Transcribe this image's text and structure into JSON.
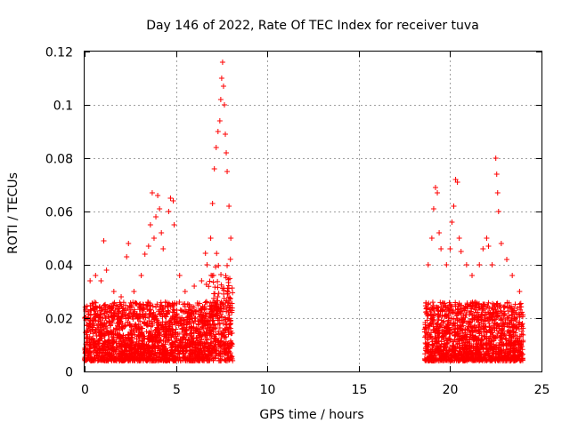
{
  "chart_data": {
    "type": "scatter",
    "title": "Day 146 of 2022, Rate Of TEC Index for receiver tuva",
    "xlabel": "GPS time / hours",
    "ylabel": "ROTI / TECUs",
    "xlim": [
      0,
      25
    ],
    "ylim": [
      0,
      0.12
    ],
    "xticks": [
      "0",
      "5",
      "10",
      "15",
      "20",
      "25"
    ],
    "yticks": [
      "0",
      "0.02",
      "0.04",
      "0.06",
      "0.08",
      "0.1",
      "0.12"
    ],
    "grid": true,
    "marker": "plus",
    "color": "#ff0000",
    "series": [
      {
        "segments": [
          [
            0.0,
            8.1
          ],
          [
            18.6,
            24.0
          ]
        ],
        "points": [
          [
            0.3,
            0.034
          ],
          [
            0.6,
            0.036
          ],
          [
            0.9,
            0.034
          ],
          [
            1.05,
            0.049
          ],
          [
            1.2,
            0.038
          ],
          [
            1.6,
            0.03
          ],
          [
            2.0,
            0.028
          ],
          [
            2.3,
            0.043
          ],
          [
            2.4,
            0.048
          ],
          [
            2.7,
            0.03
          ],
          [
            3.1,
            0.036
          ],
          [
            3.3,
            0.044
          ],
          [
            3.5,
            0.047
          ],
          [
            3.6,
            0.055
          ],
          [
            3.7,
            0.067
          ],
          [
            3.8,
            0.05
          ],
          [
            3.9,
            0.058
          ],
          [
            4.0,
            0.066
          ],
          [
            4.1,
            0.061
          ],
          [
            4.2,
            0.052
          ],
          [
            4.3,
            0.046
          ],
          [
            4.6,
            0.06
          ],
          [
            4.7,
            0.065
          ],
          [
            4.85,
            0.064
          ],
          [
            4.9,
            0.055
          ],
          [
            5.2,
            0.036
          ],
          [
            5.5,
            0.03
          ],
          [
            6.0,
            0.032
          ],
          [
            6.4,
            0.034
          ],
          [
            6.7,
            0.04
          ],
          [
            6.9,
            0.05
          ],
          [
            7.0,
            0.063
          ],
          [
            7.1,
            0.076
          ],
          [
            7.2,
            0.084
          ],
          [
            7.3,
            0.09
          ],
          [
            7.4,
            0.094
          ],
          [
            7.45,
            0.102
          ],
          [
            7.5,
            0.11
          ],
          [
            7.55,
            0.116
          ],
          [
            7.6,
            0.107
          ],
          [
            7.65,
            0.1
          ],
          [
            7.7,
            0.089
          ],
          [
            7.75,
            0.082
          ],
          [
            7.8,
            0.075
          ],
          [
            7.9,
            0.062
          ],
          [
            8.0,
            0.05
          ],
          [
            18.8,
            0.04
          ],
          [
            19.0,
            0.05
          ],
          [
            19.1,
            0.061
          ],
          [
            19.2,
            0.069
          ],
          [
            19.3,
            0.067
          ],
          [
            19.4,
            0.052
          ],
          [
            19.5,
            0.046
          ],
          [
            19.8,
            0.04
          ],
          [
            20.0,
            0.046
          ],
          [
            20.1,
            0.056
          ],
          [
            20.2,
            0.062
          ],
          [
            20.3,
            0.072
          ],
          [
            20.4,
            0.071
          ],
          [
            20.5,
            0.05
          ],
          [
            20.6,
            0.045
          ],
          [
            20.9,
            0.04
          ],
          [
            21.2,
            0.036
          ],
          [
            21.6,
            0.04
          ],
          [
            21.8,
            0.046
          ],
          [
            22.0,
            0.05
          ],
          [
            22.1,
            0.047
          ],
          [
            22.3,
            0.04
          ],
          [
            22.5,
            0.08
          ],
          [
            22.55,
            0.074
          ],
          [
            22.6,
            0.067
          ],
          [
            22.65,
            0.06
          ],
          [
            22.8,
            0.048
          ],
          [
            23.1,
            0.042
          ],
          [
            23.4,
            0.036
          ],
          [
            23.8,
            0.03
          ]
        ]
      }
    ]
  }
}
